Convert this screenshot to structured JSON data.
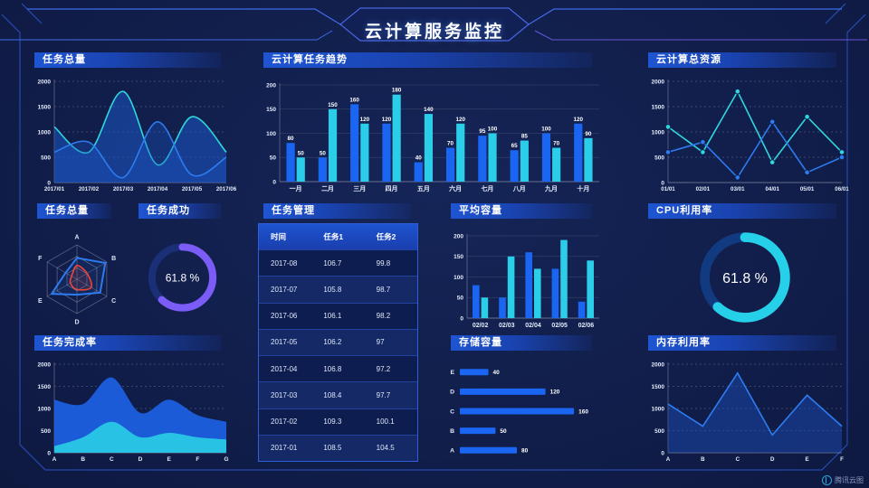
{
  "header": {
    "title": "云计算服务监控"
  },
  "watermark": {
    "label": "腾讯云图"
  },
  "colors": {
    "blue": "#2E7BF0",
    "barBlue": "#1A66F2",
    "cyan": "#2BD2E6",
    "purple": "#7B5CF6",
    "red": "#F0443A",
    "bg": "#111E4D",
    "axisText": "#C8D3EE",
    "headerFrom": "#1E55D2"
  },
  "chart_data": [
    {
      "id": "task-total-area",
      "type": "area",
      "title": "任务总量",
      "x": [
        "2017/01",
        "2017/02",
        "2017/03",
        "2017/04",
        "2017/05",
        "2017/06"
      ],
      "series": [
        {
          "name": "series-cyan",
          "color": "#30D6DC",
          "fill": "rgba(27,86,199,0.55)",
          "values": [
            1100,
            600,
            1800,
            350,
            1300,
            600
          ]
        },
        {
          "name": "series-blue",
          "color": "#2E7BF0",
          "fill": "rgba(27,86,199,0.35)",
          "values": [
            600,
            800,
            100,
            1200,
            150,
            500
          ]
        }
      ],
      "ylim": [
        0,
        2000
      ],
      "yticks": [
        0,
        500,
        1000,
        1500,
        2000
      ],
      "grid": "dashed",
      "smooth": true
    },
    {
      "id": "cloud-task-trend",
      "type": "bar",
      "title": "云计算任务趋势",
      "categories": [
        "一月",
        "二月",
        "三月",
        "四月",
        "五月",
        "六月",
        "七月",
        "八月",
        "九月",
        "十月"
      ],
      "series": [
        {
          "name": "任务1",
          "color": "#1A66F2",
          "values": [
            80,
            50,
            160,
            120,
            40,
            70,
            95,
            65,
            100,
            120
          ]
        },
        {
          "name": "任务2",
          "color": "#2BCEE8",
          "values": [
            50,
            150,
            120,
            180,
            140,
            120,
            100,
            85,
            70,
            90
          ]
        }
      ],
      "ylim": [
        0,
        200
      ],
      "yticks": [
        0,
        50,
        100,
        150,
        200
      ],
      "value_labels": true
    },
    {
      "id": "cloud-resource-total",
      "type": "line",
      "title": "云计算总资源",
      "x": [
        "01/01",
        "02/01",
        "03/01",
        "04/01",
        "05/01",
        "06/01"
      ],
      "series": [
        {
          "name": "series-cyan",
          "color": "#30D6DC",
          "values": [
            1100,
            600,
            1800,
            400,
            1300,
            600
          ]
        },
        {
          "name": "series-blue",
          "color": "#2E7BF0",
          "values": [
            600,
            800,
            100,
            1200,
            200,
            500
          ]
        }
      ],
      "ylim": [
        0,
        2000
      ],
      "yticks": [
        0,
        500,
        1000,
        1500,
        2000
      ],
      "grid": "dashed",
      "markers": true
    },
    {
      "id": "task-total-radar",
      "type": "radar",
      "title": "任务总量",
      "axes": [
        "A",
        "B",
        "C",
        "D",
        "E",
        "F"
      ],
      "series": [
        {
          "name": "series-blue",
          "color": "#2E7BF0",
          "values": [
            0.62,
            0.95,
            0.78,
            0.45,
            0.85,
            0.38
          ],
          "smooth": false
        },
        {
          "name": "series-red",
          "color": "#F0443A",
          "values": [
            0.4,
            0.34,
            0.48,
            0.3,
            0.22,
            0.18
          ],
          "smooth": true
        }
      ]
    },
    {
      "id": "task-success-gauge",
      "type": "donut",
      "title": "任务成功",
      "value": 61.8,
      "label": "61.8 %",
      "color": "#7B5CF6",
      "track": "#1B2F77"
    },
    {
      "id": "task-table",
      "type": "table",
      "title": "任务管理",
      "columns": [
        "时间",
        "任务1",
        "任务2"
      ],
      "rows": [
        [
          "2017-08",
          "106.7",
          "99.8"
        ],
        [
          "2017-07",
          "105.8",
          "98.7"
        ],
        [
          "2017-06",
          "106.1",
          "98.2"
        ],
        [
          "2017-05",
          "106.2",
          "97"
        ],
        [
          "2017-04",
          "106.8",
          "97.2"
        ],
        [
          "2017-03",
          "108.4",
          "97.7"
        ],
        [
          "2017-02",
          "109.3",
          "100.1"
        ],
        [
          "2017-01",
          "108.5",
          "104.5"
        ]
      ]
    },
    {
      "id": "avg-capacity",
      "type": "bar",
      "title": "平均容量",
      "categories": [
        "02/02",
        "02/03",
        "02/04",
        "02/05",
        "02/06"
      ],
      "series": [
        {
          "name": "series-blue",
          "color": "#1A66F2",
          "values": [
            80,
            50,
            160,
            120,
            40
          ]
        },
        {
          "name": "series-cyan",
          "color": "#2BCEE8",
          "values": [
            50,
            150,
            120,
            190,
            140
          ]
        }
      ],
      "ylim": [
        0,
        200
      ],
      "yticks": [
        0,
        50,
        100,
        150,
        200
      ],
      "value_labels": false
    },
    {
      "id": "cpu-usage-gauge",
      "type": "donut",
      "title": "CPU利用率",
      "value": 61.8,
      "label": "61.8 %",
      "color": "#25D0E8",
      "track": "#123A80"
    },
    {
      "id": "task-completion",
      "type": "stacked-area",
      "title": "任务完成率",
      "x": [
        "A",
        "B",
        "C",
        "D",
        "E",
        "F",
        "G"
      ],
      "series": [
        {
          "name": "series-blue",
          "color": "#1B5FD8",
          "fill": "#1E5FE0",
          "values": [
            1200,
            1100,
            1700,
            900,
            1200,
            850,
            700
          ]
        },
        {
          "name": "series-cyan",
          "color": "#29C8E6",
          "fill": "#29C8E6",
          "values": [
            150,
            350,
            700,
            350,
            450,
            350,
            300
          ]
        }
      ],
      "ylim": [
        0,
        2000
      ],
      "yticks": [
        0,
        500,
        1000,
        1500,
        2000
      ],
      "grid": "dashed",
      "smooth": true
    },
    {
      "id": "storage-capacity",
      "type": "hbar",
      "title": "存储容量",
      "categories": [
        "E",
        "D",
        "C",
        "B",
        "A"
      ],
      "values": [
        40,
        120,
        160,
        50,
        80
      ],
      "xmax": 170,
      "color": "#1A66F2"
    },
    {
      "id": "memory-usage",
      "type": "area",
      "title": "内存利用率",
      "x": [
        "A",
        "B",
        "C",
        "D",
        "E",
        "F"
      ],
      "series": [
        {
          "name": "series-blue",
          "color": "#2E7BF0",
          "fill": "rgba(28,80,190,0.45)",
          "values": [
            1100,
            600,
            1800,
            400,
            1300,
            600
          ]
        }
      ],
      "ylim": [
        0,
        2000
      ],
      "yticks": [
        0,
        500,
        1000,
        1500,
        2000
      ],
      "grid": "dashed",
      "smooth": false
    }
  ]
}
